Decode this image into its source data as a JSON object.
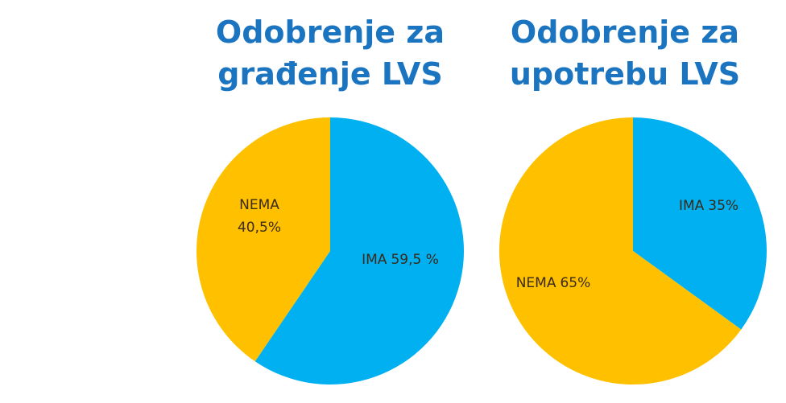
{
  "chart_data": [
    {
      "type": "pie",
      "title": "Odobrenje za građenje LVS",
      "categories": [
        "IMA",
        "NEMA"
      ],
      "values": [
        59.5,
        40.5
      ],
      "value_labels": [
        "59,5 %",
        "40,5%"
      ],
      "colors": [
        "#00b0f0",
        "#ffc000"
      ]
    },
    {
      "type": "pie",
      "title": "Odobrenje za upotrebu LVS",
      "categories": [
        "IMA",
        "NEMA"
      ],
      "values": [
        35,
        65
      ],
      "value_labels": [
        "35%",
        "65%"
      ],
      "colors": [
        "#00b0f0",
        "#ffc000"
      ]
    }
  ]
}
